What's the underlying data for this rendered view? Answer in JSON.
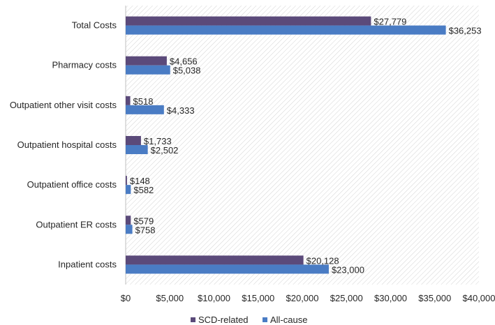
{
  "chart_data": {
    "type": "bar",
    "orientation": "horizontal",
    "title": "",
    "xlabel": "",
    "ylabel": "",
    "categories": [
      "Total Costs",
      "Pharmacy costs",
      "Outpatient other visit costs",
      "Outpatient hospital costs",
      "Outpatient office costs",
      "Outpatient  ER costs",
      "Inpatient costs"
    ],
    "series": [
      {
        "name": "SCD-related",
        "color": "#5b4a7a",
        "values": [
          27779,
          4656,
          518,
          1733,
          148,
          579,
          20128
        ],
        "labels": [
          "$27,779",
          "$4,656",
          "$518",
          "$1,733",
          "$148",
          "$579",
          "$20,128"
        ]
      },
      {
        "name": "All-cause",
        "color": "#4a7cc4",
        "values": [
          36253,
          5038,
          4333,
          2502,
          582,
          758,
          23000
        ],
        "labels": [
          "$36,253",
          "$5,038",
          "$4,333",
          "$2,502",
          "$582",
          "$758",
          "$23,000"
        ]
      }
    ],
    "xlim": [
      0,
      40000
    ],
    "xticks": [
      0,
      5000,
      10000,
      15000,
      20000,
      25000,
      30000,
      35000,
      40000
    ],
    "xtick_labels": [
      "$0",
      "$5,000",
      "$10,000",
      "$15,000",
      "$20,000",
      "$25,000",
      "$30,000",
      "$35,000",
      "$40,000"
    ],
    "legend": {
      "position": "bottom",
      "entries": [
        "SCD-related",
        "All-cause"
      ]
    },
    "grid": false,
    "plot_background": "diagonal-hatch"
  }
}
